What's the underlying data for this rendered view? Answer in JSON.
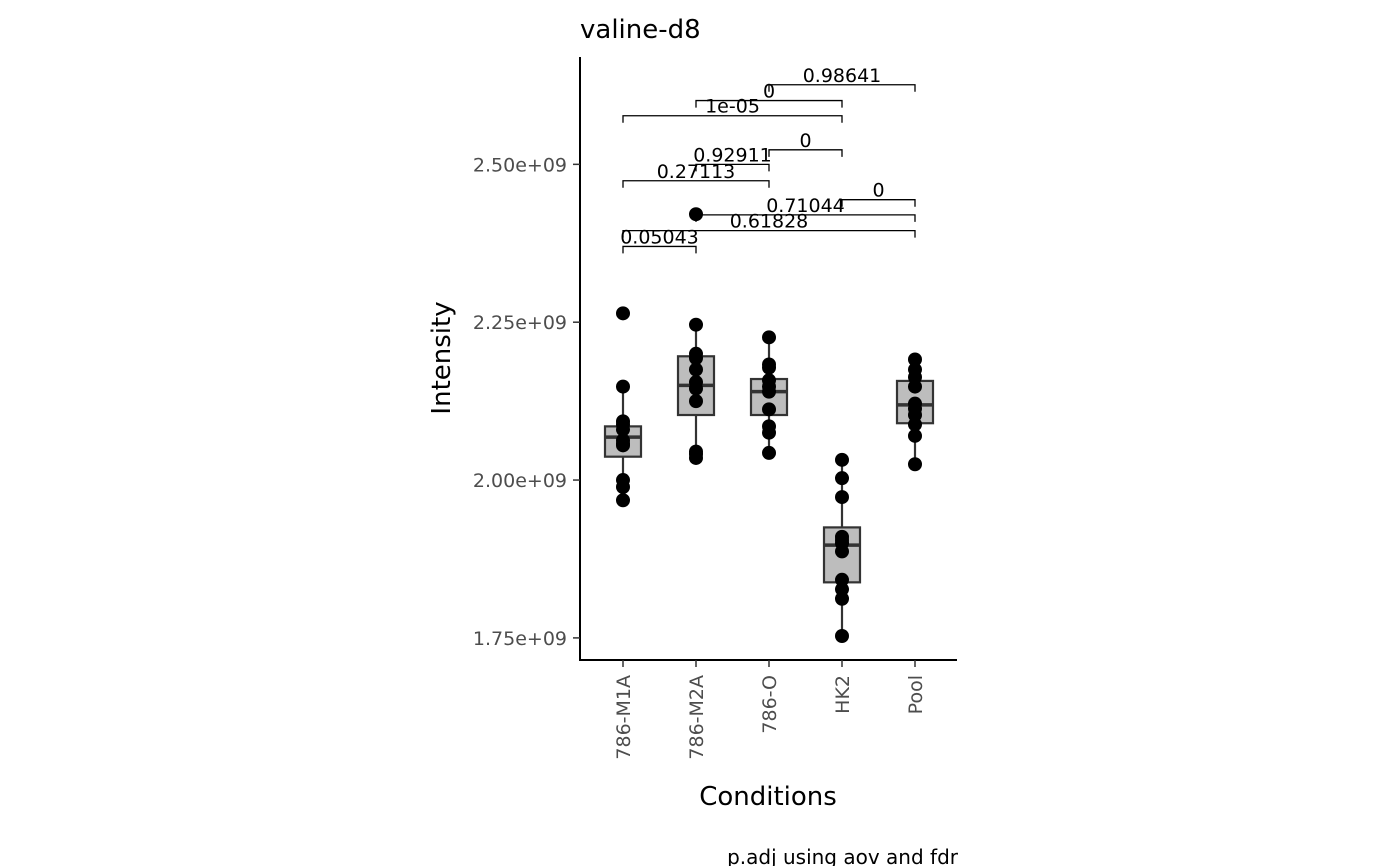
{
  "chart_data": {
    "type": "boxplot",
    "title": "valine-d8",
    "xlabel": "Conditions",
    "ylabel": "Intensity",
    "caption": "p.adj using  aov and fdr",
    "ylim": [
      1715000000,
      2670000000
    ],
    "yticks": [
      1750000000,
      2000000000,
      2250000000,
      2500000000
    ],
    "ytick_labels": [
      "1.75e+09",
      "2.00e+09",
      "2.25e+09",
      "2.50e+09"
    ],
    "grid": false,
    "legend": "none",
    "categories": [
      "786-M1A",
      "786-M2A",
      "786-O",
      "HK2",
      "Pool"
    ],
    "box_fill": "#bdbdbd",
    "boxes": [
      {
        "category": "786-M1A",
        "q1": 2037000000,
        "median": 2068000000,
        "q3": 2085000000,
        "whisker_low": 1968000000,
        "whisker_high": 2148000000
      },
      {
        "category": "786-M2A",
        "q1": 2103000000,
        "median": 2150000000,
        "q3": 2196000000,
        "whisker_low": 2035000000,
        "whisker_high": 2246000000
      },
      {
        "category": "786-O",
        "q1": 2103000000,
        "median": 2140000000,
        "q3": 2160000000,
        "whisker_low": 2043000000,
        "whisker_high": 2226000000
      },
      {
        "category": "HK2",
        "q1": 1838000000,
        "median": 1897000000,
        "q3": 1925000000,
        "whisker_low": 1753000000,
        "whisker_high": 2032000000
      },
      {
        "category": "Pool",
        "q1": 2090000000,
        "median": 2119000000,
        "q3": 2157000000,
        "whisker_low": 2025000000,
        "whisker_high": 2191000000
      }
    ],
    "points": [
      {
        "category": "786-M1A",
        "values": [
          2264000000,
          2148000000,
          2093000000,
          2088000000,
          2080000000,
          2063000000,
          2058000000,
          2055000000,
          2000000000,
          1989000000,
          1968000000
        ]
      },
      {
        "category": "786-M2A",
        "values": [
          2421000000,
          2246000000,
          2200000000,
          2193000000,
          2175000000,
          2155000000,
          2145000000,
          2125000000,
          2045000000,
          2041000000,
          2035000000
        ]
      },
      {
        "category": "786-O",
        "values": [
          2226000000,
          2183000000,
          2178000000,
          2158000000,
          2148000000,
          2140000000,
          2112000000,
          2085000000,
          2075000000,
          2043000000
        ]
      },
      {
        "category": "HK2",
        "values": [
          2032000000,
          2003000000,
          1973000000,
          1910000000,
          1905000000,
          1900000000,
          1887000000,
          1842000000,
          1827000000,
          1812000000,
          1753000000
        ]
      },
      {
        "category": "Pool",
        "values": [
          2191000000,
          2175000000,
          2163000000,
          2148000000,
          2121000000,
          2113000000,
          2103000000,
          2088000000,
          2070000000,
          2025000000
        ]
      }
    ],
    "comparisons": [
      {
        "group1": "786-M1A",
        "group2": "786-M2A",
        "label": "0.05043",
        "y": 2370000000
      },
      {
        "group1": "786-M1A",
        "group2": "Pool",
        "label": "0.61828",
        "y": 2395000000
      },
      {
        "group1": "786-M2A",
        "group2": "Pool",
        "label": "0.71044",
        "y": 2420000000
      },
      {
        "group1": "HK2",
        "group2": "Pool",
        "label": "0",
        "y": 2444000000
      },
      {
        "group1": "786-M1A",
        "group2": "786-O",
        "label": "0.27113",
        "y": 2474000000
      },
      {
        "group1": "786-M2A",
        "group2": "786-O",
        "label": "0.92911",
        "y": 2500000000
      },
      {
        "group1": "786-O",
        "group2": "HK2",
        "label": "0",
        "y": 2523000000
      },
      {
        "group1": "786-M1A",
        "group2": "HK2",
        "label": "1e-05",
        "y": 2577000000
      },
      {
        "group1": "786-M2A",
        "group2": "HK2",
        "label": "0",
        "y": 2601000000
      },
      {
        "group1": "786-O",
        "group2": "Pool",
        "label": "0.98641",
        "y": 2626000000
      }
    ]
  }
}
